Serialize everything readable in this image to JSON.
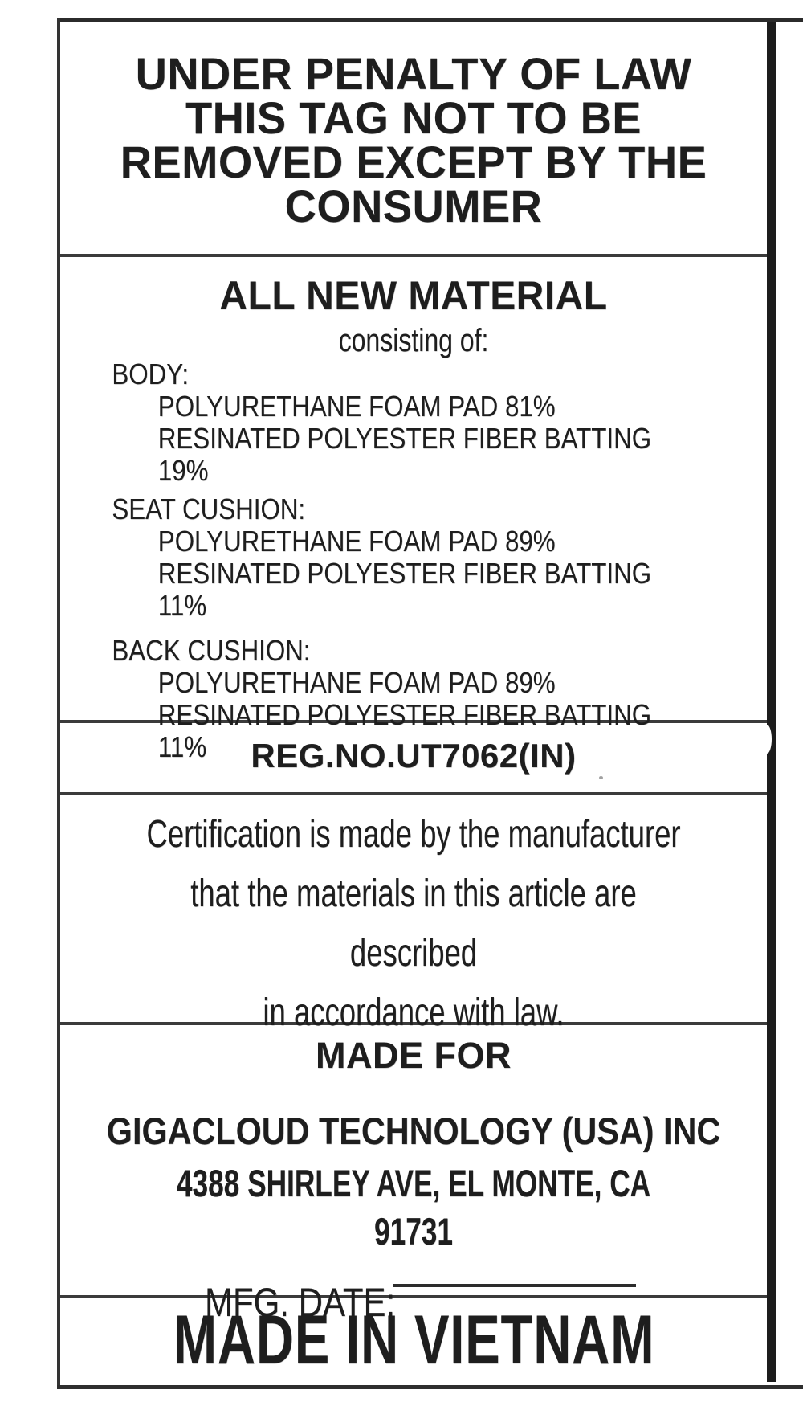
{
  "label": {
    "header": {
      "lines": [
        "UNDER PENALTY OF LAW",
        "THIS TAG NOT TO BE",
        "REMOVED EXCEPT BY THE",
        "CONSUMER"
      ]
    },
    "materials": {
      "title": "ALL NEW MATERIAL",
      "subtitle": "consisting of:",
      "groups": [
        {
          "name": "BODY:",
          "items": [
            "POLYURETHANE FOAM PAD 81%",
            "RESINATED POLYESTER FIBER BATTING 19%"
          ]
        },
        {
          "name": "SEAT CUSHION:",
          "items": [
            "POLYURETHANE FOAM PAD 89%",
            "RESINATED POLYESTER FIBER BATTING 11%"
          ]
        },
        {
          "name": "BACK CUSHION:",
          "items": [
            "POLYURETHANE FOAM PAD 89%",
            "RESINATED POLYESTER FIBER BATTING 11%"
          ]
        }
      ]
    },
    "reg_no": "REG.NO.UT7062(IN)",
    "certification": {
      "lines": [
        "Certification is made by the manufacturer",
        "that the materials in this article are described",
        "in accordance with law."
      ]
    },
    "made_for": {
      "title": "MADE FOR",
      "company": "GIGACLOUD TECHNOLOGY (USA) INC",
      "address": "4388 SHIRLEY AVE, EL MONTE, CA 91731",
      "mfg_date_label": "MFG. DATE:"
    },
    "origin": "MADE IN VIETNAM"
  },
  "colors": {
    "ink": "#1e1e1e",
    "border": "#2b2b2b",
    "divider": "#3b3b3b",
    "background": "#ffffff"
  }
}
